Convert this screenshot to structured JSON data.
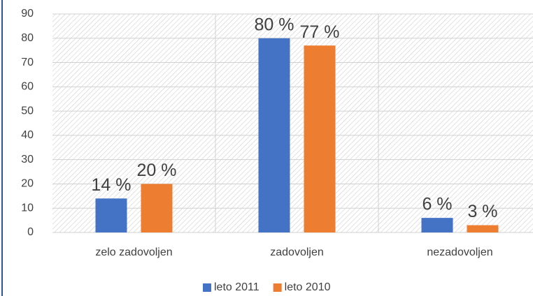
{
  "chart_data": {
    "type": "bar",
    "categories": [
      "zelo zadovoljen",
      "zadovoljen",
      "nezadovoljen"
    ],
    "series": [
      {
        "name": "leto 2011",
        "color": "#4472c4",
        "values": [
          14,
          80,
          6
        ],
        "value_labels": [
          "14 %",
          "80 %",
          "6 %"
        ]
      },
      {
        "name": "leto 2010",
        "color": "#ed7d31",
        "values": [
          20,
          77,
          3
        ],
        "value_labels": [
          "20 %",
          "77 %",
          "3 %"
        ]
      }
    ],
    "ylim": [
      0,
      90
    ],
    "yticks": [
      0,
      10,
      20,
      30,
      40,
      50,
      60,
      70,
      80,
      90
    ],
    "grid": true,
    "legend": "bottom"
  }
}
